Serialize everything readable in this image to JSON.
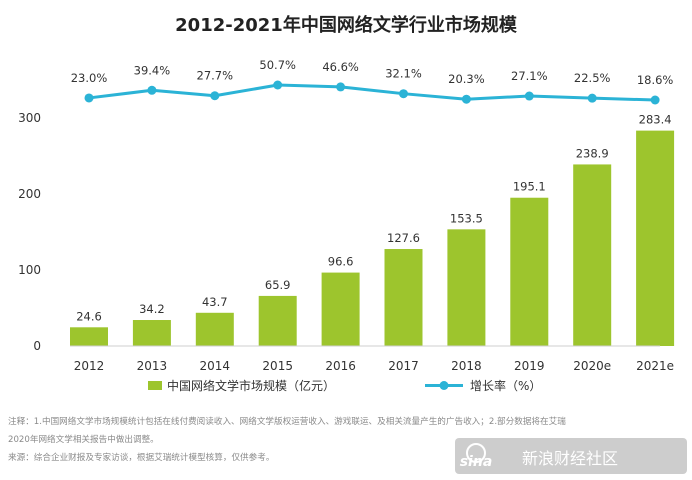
{
  "chart_data": {
    "type": "bar",
    "title": "2012-2021年中国网络文学行业市场规模",
    "categories": [
      "2012",
      "2013",
      "2014",
      "2015",
      "2016",
      "2017",
      "2018",
      "2019",
      "2020e",
      "2021e"
    ],
    "series": [
      {
        "name": "中国网络文学市场规模（亿元）",
        "type": "bar",
        "values": [
          24.6,
          34.2,
          43.7,
          65.9,
          96.6,
          127.6,
          153.5,
          195.1,
          238.9,
          283.4
        ],
        "color": "#9dc52d"
      },
      {
        "name": "增长率（%）",
        "type": "line",
        "values": [
          23.0,
          39.4,
          27.7,
          50.7,
          46.6,
          32.1,
          20.3,
          27.1,
          22.5,
          18.6
        ],
        "labels": [
          "23.0%",
          "39.4%",
          "27.7%",
          "50.7%",
          "46.6%",
          "32.1%",
          "20.3%",
          "27.1%",
          "22.5%",
          "18.6%"
        ],
        "color": "#2bb3d6"
      }
    ],
    "yticks": [
      0,
      100,
      200,
      300
    ],
    "ylim": [
      0,
      300
    ],
    "grid": false,
    "legend_position": "bottom"
  },
  "notes": {
    "line1": "注释：1.中国网络文学市场规模统计包括在线付费阅读收入、网络文学版权运营收入、游戏联运、及相关流量产生的广告收入；2.部分数据将在艾瑞",
    "line2": "2020年网络文学相关报告中做出调整。",
    "line3": "来源：综合企业财报及专家访谈，根据艾瑞统计模型核算，仅供参考。"
  },
  "watermark": {
    "logo": "sina",
    "text": "新浪财经社区"
  }
}
